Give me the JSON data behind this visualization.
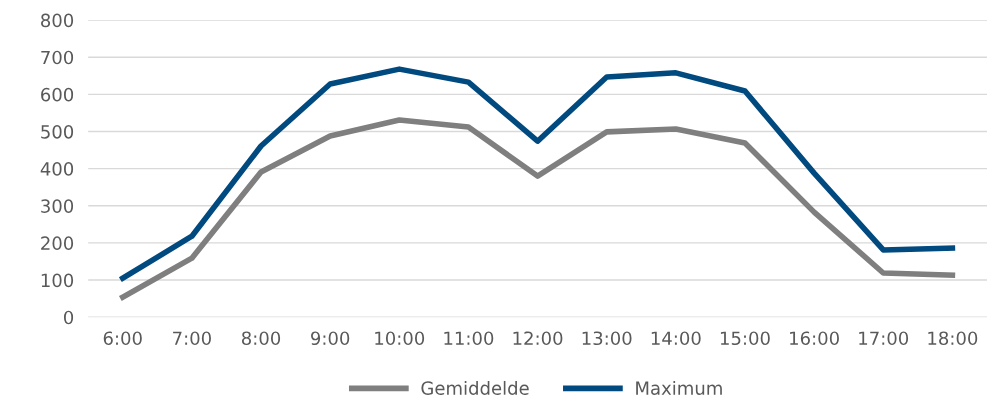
{
  "chart_data": {
    "type": "line",
    "categories": [
      "6:00",
      "7:00",
      "8:00",
      "9:00",
      "10:00",
      "11:00",
      "12:00",
      "13:00",
      "14:00",
      "15:00",
      "16:00",
      "17:00",
      "18:00"
    ],
    "series": [
      {
        "name": "Gemiddelde",
        "color": "#7f7f7f",
        "values": [
          54,
          159,
          391,
          488,
          531,
          512,
          380,
          499,
          507,
          469,
          283,
          119,
          113
        ]
      },
      {
        "name": "Maximum",
        "color": "#004a80",
        "values": [
          105,
          218,
          461,
          628,
          668,
          633,
          474,
          647,
          658,
          609,
          388,
          181,
          186
        ]
      }
    ],
    "ylim": [
      0,
      800
    ],
    "yticks": [
      0,
      100,
      200,
      300,
      400,
      500,
      600,
      700,
      800
    ],
    "grid": "y",
    "legend": "bottom",
    "marker": "none",
    "line_style": "solid"
  }
}
